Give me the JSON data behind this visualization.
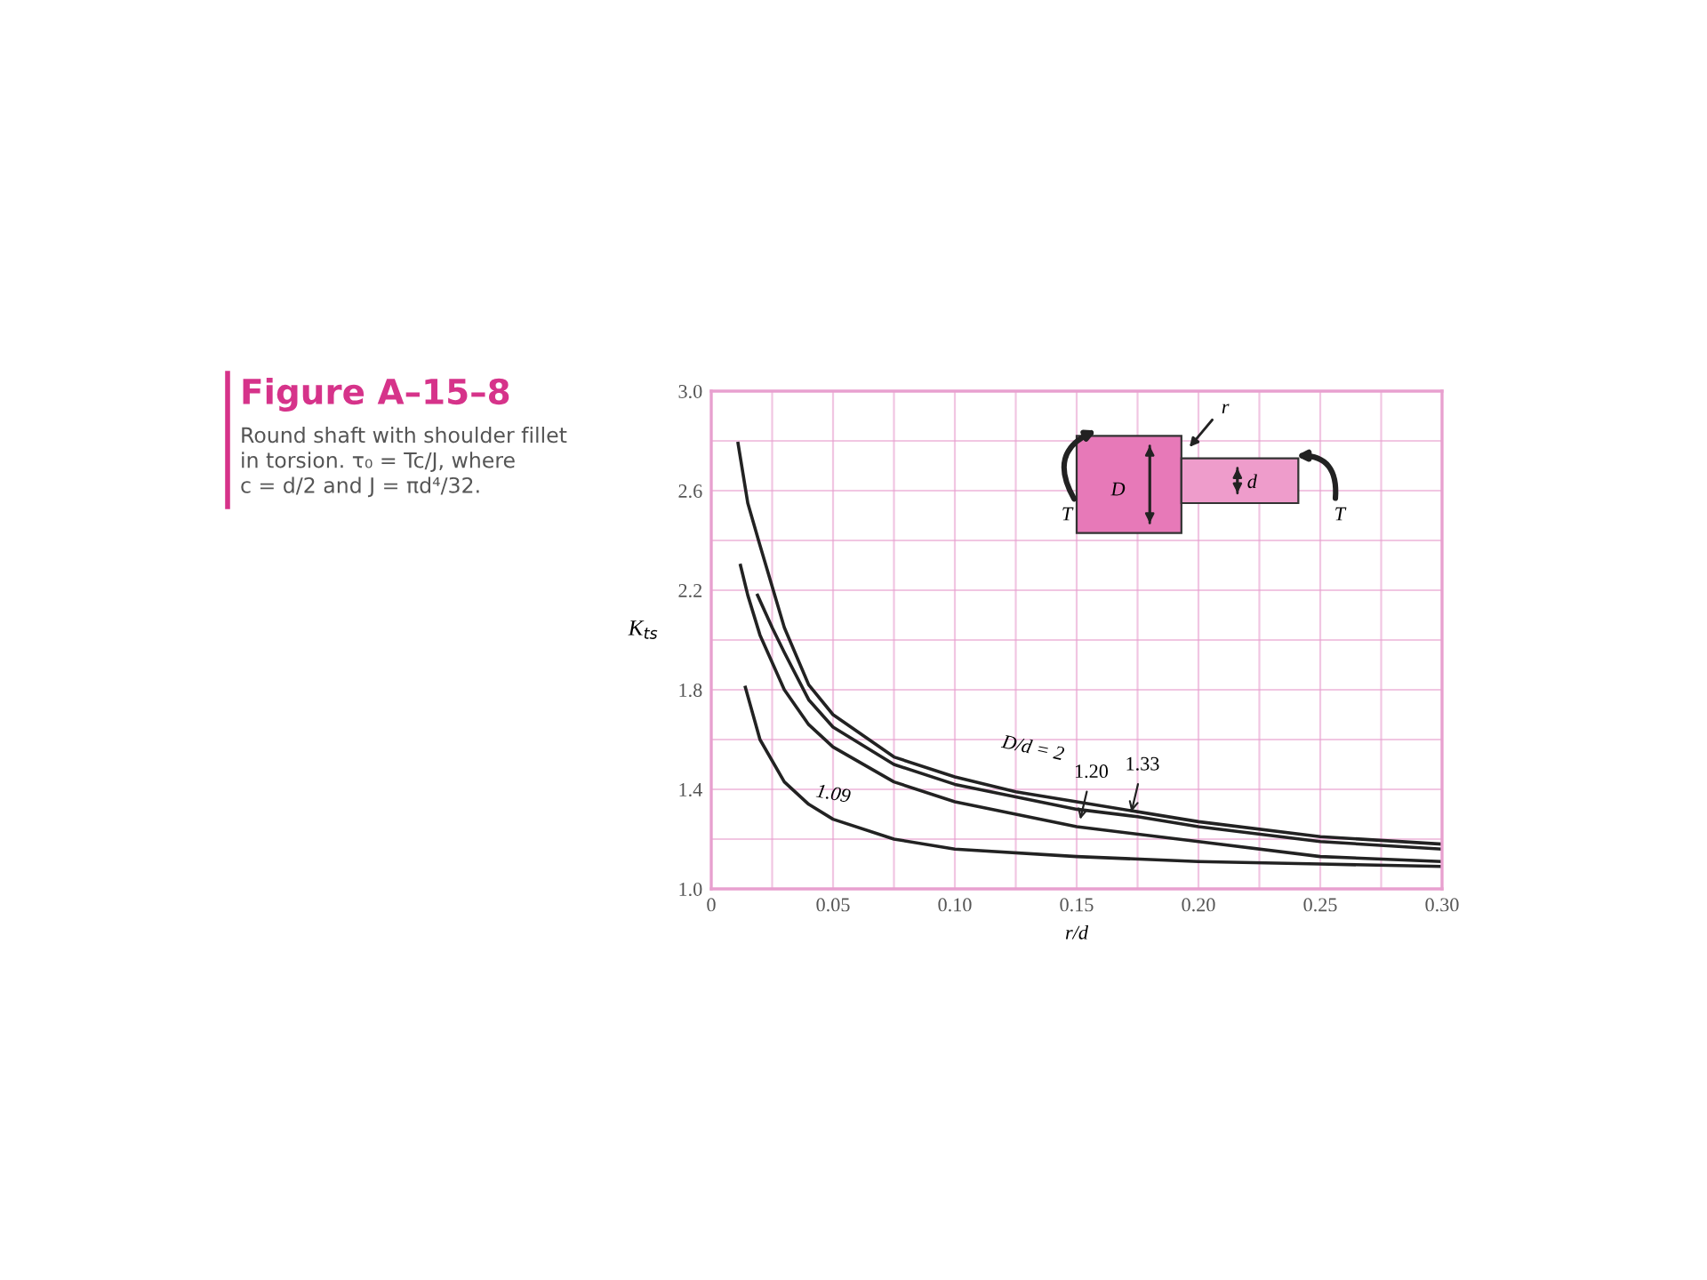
{
  "chart_data": {
    "type": "line",
    "title": "Figure A–15–8",
    "subtitle": "Round shaft with shoulder fillet\nin torsion. τ₀ = Tc/J, where\nc = d/2 and J = πd⁴/32.",
    "xlabel": "r/d",
    "ylabel": "K$_{ts}$",
    "xlim": [
      0,
      0.3
    ],
    "ylim": [
      1.0,
      3.0
    ],
    "xticks": [
      0,
      {
        "value": 0.025,
        "label": null
      },
      {
        "value": 0.05,
        "label": "0.05"
      },
      {
        "value": 0.075,
        "label": null
      },
      {
        "value": 0.1,
        "label": "0.10"
      },
      {
        "value": 0.125,
        "label": null
      },
      {
        "value": 0.15,
        "label": "0.15"
      },
      {
        "value": 0.175,
        "label": null
      },
      {
        "value": 0.2,
        "label": "0.20"
      },
      {
        "value": 0.225,
        "label": null
      },
      {
        "value": 0.25,
        "label": "0.25"
      },
      {
        "value": 0.275,
        "label": null
      },
      {
        "value": 0.3,
        "label": "0.30"
      }
    ],
    "yticks": [
      {
        "value": 1.0,
        "label": "1.0"
      },
      {
        "value": 1.2,
        "label": null
      },
      1.4,
      {
        "value": 1.6,
        "label": null
      },
      1.8,
      {
        "value": 2.0,
        "label": null
      },
      2.2,
      {
        "value": 2.4,
        "label": null
      },
      2.6,
      {
        "value": 2.8,
        "label": null
      },
      {
        "value": 3.0,
        "label": "3.0"
      }
    ],
    "grid": true,
    "series": [
      {
        "color": "#222222",
        "x": [
          0.011,
          0.015,
          0.02,
          0.03,
          0.04,
          0.05,
          0.075,
          0.1,
          0.125,
          0.15,
          0.2,
          0.25,
          0.3
        ],
        "values": [
          2.79,
          2.55,
          2.38,
          2.05,
          1.82,
          1.7,
          1.53,
          1.45,
          1.39,
          1.35,
          1.27,
          1.21,
          1.18
        ]
      },
      {
        "color": "#222222",
        "x": [
          0.019,
          0.025,
          0.03,
          0.04,
          0.05,
          0.075,
          0.1,
          0.15,
          0.175,
          0.2,
          0.25,
          0.3
        ],
        "values": [
          2.18,
          2.05,
          1.95,
          1.76,
          1.65,
          1.5,
          1.42,
          1.32,
          1.29,
          1.25,
          1.19,
          1.16
        ]
      },
      {
        "color": "#222222",
        "x": [
          0.012,
          0.015,
          0.02,
          0.03,
          0.04,
          0.05,
          0.075,
          0.1,
          0.15,
          0.2,
          0.25,
          0.3
        ],
        "values": [
          2.3,
          2.18,
          2.02,
          1.8,
          1.66,
          1.57,
          1.43,
          1.35,
          1.25,
          1.19,
          1.13,
          1.11
        ]
      },
      {
        "color": "#222222",
        "x": [
          0.014,
          0.02,
          0.03,
          0.04,
          0.05,
          0.075,
          0.1,
          0.15,
          0.2,
          0.25,
          0.3
        ],
        "values": [
          1.81,
          1.6,
          1.43,
          1.34,
          1.28,
          1.2,
          1.16,
          1.13,
          1.11,
          1.1,
          1.09
        ]
      }
    ],
    "annotations": [
      "D/d = 2",
      {
        "text": "1.20",
        "x": 0.151,
        "y": 1.26
      },
      {
        "text": "1.33",
        "x": 0.172,
        "y": 1.29
      },
      "1.09",
      "T",
      "D",
      "r",
      "d",
      "T"
    ]
  }
}
